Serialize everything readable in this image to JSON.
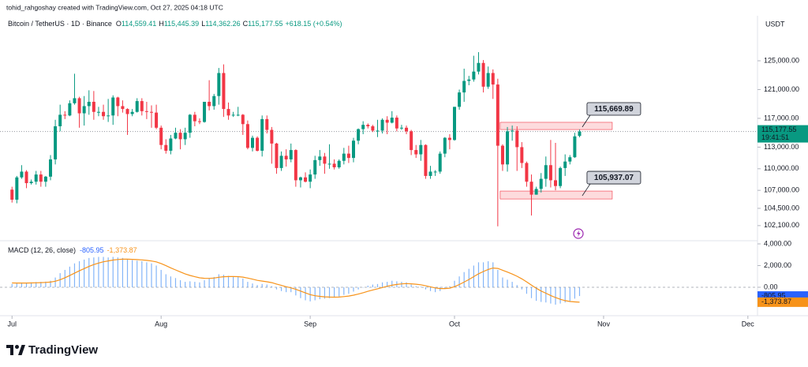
{
  "header": {
    "author_line": "tohid_rahgoshay created with TradingView.com, Oct 27, 2025 04:18 UTC"
  },
  "chart_data": [
    {
      "type": "candlestick",
      "title": "Bitcoin / TetherUS · 1D · Binance",
      "ohlc_legend": [
        {
          "key": "O",
          "text": "114,559.41"
        },
        {
          "key": "H",
          "text": "115,445.39"
        },
        {
          "key": "L",
          "text": "114,362.26"
        },
        {
          "key": "C",
          "text": "115,177.55"
        }
      ],
      "change": "+618.15 (+0.54%)",
      "currency": "USDT",
      "colors": {
        "up": "#089981",
        "down": "#f23645"
      },
      "open": [
        107100,
        105700,
        108800,
        109600,
        108000,
        108200,
        109200,
        108200,
        108900,
        111300,
        115900,
        117500,
        117400,
        119100,
        119800,
        117700,
        118700,
        119300,
        117900,
        117900,
        117300,
        117400,
        119900,
        118700,
        118300,
        117600,
        117900,
        119400,
        118000,
        117900,
        117800,
        115700,
        113300,
        112500,
        114200,
        115000,
        114100,
        115000,
        117500,
        116600,
        116500,
        119300,
        118700,
        120100,
        123300,
        118300,
        117400,
        117500,
        117500,
        116200,
        112900,
        114300,
        112500,
        116900,
        115400,
        113500,
        110100,
        111800,
        111300,
        112600,
        108400,
        108800,
        108200,
        109200,
        111200,
        111700,
        110700,
        110700,
        110200,
        111100,
        112100,
        111500,
        113900,
        115500,
        116100,
        115900,
        115300,
        115300,
        116800,
        116400,
        117100,
        115600,
        115700,
        115200,
        112600,
        112000,
        113300,
        109000,
        109600,
        109600,
        112100,
        114300,
        114000,
        118600,
        120600,
        122200,
        122400,
        123500,
        124700,
        121400,
        123300,
        121700,
        113200,
        110600,
        115200,
        115300,
        113000,
        110800,
        108200,
        106400,
        107200,
        108600,
        110500,
        108400,
        107600,
        110100,
        111000,
        111600,
        114559.41
      ],
      "high": [
        107500,
        109000,
        110500,
        109800,
        108500,
        109700,
        109700,
        109000,
        111900,
        116800,
        118900,
        118000,
        119500,
        123200,
        120000,
        120100,
        120900,
        120800,
        118600,
        118900,
        119700,
        120200,
        120000,
        119500,
        118400,
        118300,
        119800,
        119800,
        119300,
        118800,
        118900,
        116000,
        114100,
        114700,
        115700,
        115500,
        115700,
        117600,
        117900,
        117000,
        119300,
        122300,
        120400,
        124000,
        124500,
        119200,
        117900,
        118600,
        117600,
        116700,
        114600,
        114500,
        117400,
        117400,
        115800,
        113600,
        112400,
        112700,
        113500,
        112700,
        108900,
        109500,
        109900,
        111800,
        112600,
        112200,
        113400,
        111300,
        111300,
        112900,
        113200,
        114300,
        115600,
        116600,
        116300,
        116100,
        116800,
        117000,
        117300,
        118000,
        117400,
        116100,
        116000,
        115400,
        113300,
        114000,
        113400,
        110400,
        109800,
        112400,
        114400,
        114800,
        118600,
        121000,
        123900,
        122900,
        125700,
        126200,
        125100,
        124200,
        123800,
        122500,
        113400,
        115800,
        116000,
        115900,
        113700,
        111000,
        109200,
        107500,
        109400,
        111700,
        114000,
        113600,
        110300,
        112000,
        111900,
        115000,
        115445.39
      ],
      "low": [
        105300,
        105200,
        108600,
        107300,
        107800,
        107800,
        107500,
        107500,
        108400,
        110600,
        115200,
        116900,
        117300,
        118900,
        115700,
        116000,
        117500,
        116800,
        117300,
        116800,
        116500,
        116100,
        117300,
        117800,
        114700,
        117300,
        117800,
        117400,
        116900,
        115700,
        115500,
        112700,
        112100,
        112000,
        114100,
        112700,
        113300,
        114300,
        115900,
        116200,
        116400,
        118100,
        118200,
        118900,
        117200,
        116800,
        117200,
        117300,
        114700,
        112700,
        112400,
        112400,
        111700,
        114900,
        110700,
        109300,
        109700,
        110300,
        110900,
        107500,
        107400,
        108100,
        107300,
        108600,
        110400,
        109300,
        110000,
        109900,
        110000,
        110600,
        110800,
        110900,
        113400,
        114800,
        115600,
        115100,
        114400,
        114900,
        114800,
        116300,
        115200,
        115400,
        114800,
        111900,
        111500,
        111100,
        108600,
        108600,
        109000,
        109300,
        111600,
        112700,
        113900,
        118200,
        119300,
        121600,
        122100,
        123100,
        120600,
        121100,
        119700,
        102000,
        109700,
        109600,
        113900,
        109700,
        110100,
        107500,
        103500,
        106400,
        106700,
        107500,
        107400,
        107000,
        107300,
        109000,
        110600,
        111500,
        114362.26
      ],
      "close": [
        105700,
        108800,
        109600,
        108000,
        108200,
        109200,
        108200,
        108900,
        111300,
        115900,
        117500,
        117400,
        119100,
        119800,
        117700,
        118700,
        119300,
        117900,
        117900,
        117300,
        117400,
        119900,
        118700,
        118300,
        117600,
        117900,
        119400,
        118000,
        117900,
        117800,
        115700,
        113300,
        112500,
        114200,
        115000,
        114100,
        115000,
        117500,
        116600,
        116500,
        119300,
        118700,
        120100,
        123300,
        118300,
        117400,
        117500,
        117500,
        116200,
        112900,
        114300,
        112500,
        116900,
        115400,
        113500,
        110100,
        111800,
        111300,
        112600,
        108400,
        108800,
        108200,
        109200,
        111200,
        111700,
        110700,
        110700,
        110200,
        111100,
        112100,
        111500,
        113900,
        115500,
        116100,
        115900,
        115300,
        115300,
        116800,
        116400,
        117100,
        115600,
        115700,
        115200,
        112600,
        112000,
        113300,
        109000,
        109600,
        109600,
        112100,
        114300,
        114000,
        118600,
        120600,
        122200,
        122400,
        123500,
        124700,
        121400,
        123300,
        121700,
        113200,
        110600,
        115200,
        115300,
        113000,
        110800,
        108200,
        106400,
        107200,
        108600,
        110500,
        108400,
        107600,
        110100,
        111000,
        111600,
        114500,
        115177.55
      ],
      "last_price_label": "115,177.55",
      "countdown": "19:41:51",
      "zones": [
        {
          "label": "115,669.89",
          "top": 116450,
          "bottom": 115450,
          "start": 101.5,
          "end": 124.8
        },
        {
          "label": "105,937.07",
          "top": 106900,
          "bottom": 105800,
          "start": 101.5,
          "end": 124.8
        }
      ],
      "xlim": [
        -2.5,
        155
      ],
      "xticks": [
        {
          "value": 0,
          "label": "Jul"
        },
        {
          "value": 31,
          "label": "Aug"
        },
        {
          "value": 62,
          "label": "Sep"
        },
        {
          "value": 92,
          "label": "Oct"
        },
        {
          "value": 123,
          "label": "Nov"
        },
        {
          "value": 153,
          "label": "Dec"
        }
      ],
      "ylim": [
        100000,
        131250
      ],
      "yticks": [
        {
          "value": 125000,
          "label": "125,000.00"
        },
        {
          "value": 121000,
          "label": "121,000.00"
        },
        {
          "value": 117000,
          "label": "117,000.00"
        },
        {
          "value": 113000,
          "label": "113,000.00"
        },
        {
          "value": 110000,
          "label": "110,000.00"
        },
        {
          "value": 107000,
          "label": "107,000.00"
        },
        {
          "value": 104500,
          "label": "104,500.00"
        },
        {
          "value": 102100,
          "label": "102,100.00"
        }
      ]
    },
    {
      "type": "macd",
      "title": "MACD (12, 26, close)",
      "series": [
        {
          "color": "#5b9cf6",
          "last_label": "-805.95",
          "values": [
            300,
            350,
            400,
            420,
            450,
            480,
            500,
            520,
            600,
            900,
            1300,
            1600,
            1900,
            2200,
            2400,
            2550,
            2700,
            2750,
            2800,
            2800,
            2750,
            2800,
            2750,
            2700,
            2600,
            2500,
            2450,
            2400,
            2300,
            2200,
            2000,
            1600,
            1200,
            1000,
            850,
            650,
            500,
            550,
            500,
            450,
            650,
            800,
            950,
            1200,
            1150,
            1050,
            1000,
            950,
            800,
            500,
            350,
            200,
            300,
            250,
            100,
            -200,
            -350,
            -450,
            -450,
            -750,
            -1000,
            -1200,
            -1300,
            -1200,
            -1100,
            -1050,
            -1000,
            -950,
            -850,
            -700,
            -600,
            -400,
            -200,
            0,
            150,
            250,
            300,
            450,
            500,
            600,
            550,
            500,
            450,
            250,
            100,
            50,
            -200,
            -350,
            -450,
            -350,
            -100,
            100,
            600,
            1000,
            1400,
            1700,
            2000,
            2300,
            2300,
            2400,
            2300,
            1600,
            900,
            700,
            500,
            200,
            -200,
            -600,
            -1000,
            -1250,
            -1350,
            -1400,
            -1500,
            -1600,
            -1500,
            -1400,
            -1300,
            -1050,
            -805.95
          ]
        },
        {
          "color": "#f7931a",
          "last_label": "-1,373.87",
          "values": [
            400,
            390,
            390,
            390,
            400,
            410,
            430,
            450,
            480,
            560,
            700,
            880,
            1080,
            1300,
            1520,
            1720,
            1920,
            2090,
            2230,
            2350,
            2430,
            2510,
            2560,
            2590,
            2590,
            2570,
            2550,
            2520,
            2480,
            2420,
            2340,
            2190,
            1990,
            1790,
            1600,
            1410,
            1230,
            1090,
            970,
            870,
            830,
            820,
            850,
            920,
            970,
            990,
            990,
            980,
            940,
            850,
            750,
            640,
            570,
            510,
            430,
            300,
            170,
            50,
            -50,
            -190,
            -350,
            -520,
            -680,
            -780,
            -840,
            -880,
            -900,
            -910,
            -900,
            -860,
            -810,
            -730,
            -630,
            -500,
            -370,
            -250,
            -140,
            -20,
            90,
            190,
            260,
            310,
            340,
            320,
            280,
            230,
            140,
            40,
            -60,
            -120,
            -120,
            -80,
            60,
            250,
            480,
            720,
            980,
            1240,
            1450,
            1640,
            1770,
            1740,
            1570,
            1400,
            1220,
            1020,
            780,
            500,
            200,
            -90,
            -340,
            -550,
            -760,
            -950,
            -1110,
            -1230,
            -1310,
            -1350,
            -1373.87
          ]
        }
      ],
      "ylim": [
        -2620,
        4290
      ],
      "yticks": [
        {
          "value": 4000,
          "label": "4,000.00"
        },
        {
          "value": 2000,
          "label": "2,000.00"
        },
        {
          "value": 0,
          "label": "0.00"
        }
      ]
    }
  ],
  "footer": {
    "brand": "TradingView"
  }
}
